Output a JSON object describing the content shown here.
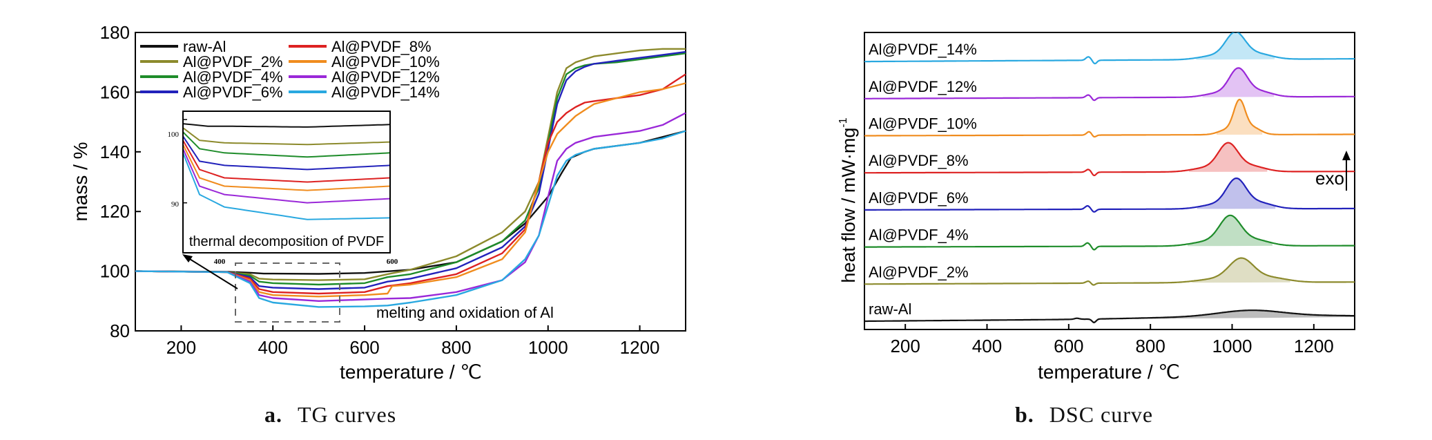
{
  "colors": {
    "raw_al": "#111111",
    "p2": "#8c8a2c",
    "p4": "#1e8c2a",
    "p6": "#2222bb",
    "p8": "#dd2222",
    "p10": "#f08c1e",
    "p12": "#9a28d8",
    "p14": "#29a8e0"
  },
  "captions": {
    "a_letter": "a.",
    "a_text": "TG curves",
    "b_letter": "b.",
    "b_text": "DSC curve"
  },
  "chart_data": [
    {
      "type": "line",
      "xlabel": "temperature / ℃",
      "ylabel": "mass / %",
      "xlim": [
        100,
        1300
      ],
      "ylim": [
        80,
        180
      ],
      "xticks": [
        200,
        400,
        600,
        800,
        1000,
        1200
      ],
      "yticks": [
        80,
        100,
        120,
        140,
        160,
        180
      ],
      "legend_position": "top-left",
      "annotations": {
        "inset_label": "thermal decomposition of PVDF",
        "main_label": "melting and oxidation of Al",
        "inset_x_ticks": [
          "400",
          "600"
        ],
        "inset_y_ticks": [
          "100",
          "90"
        ]
      },
      "inset": {
        "xlim": [
          350,
          600
        ],
        "ylim": [
          84,
          101
        ],
        "ticks_y": [
          100,
          90
        ]
      },
      "series": [
        {
          "name": "raw-Al",
          "color_key": "raw_al",
          "x": [
            100,
            300,
            350,
            380,
            400,
            500,
            600,
            700,
            800,
            900,
            950,
            1000,
            1030,
            1050,
            1080,
            1100,
            1200,
            1300
          ],
          "y": [
            100,
            99.8,
            99.5,
            99.2,
            99.2,
            99.1,
            99.4,
            100.5,
            103,
            110,
            116,
            125,
            133,
            138,
            140,
            141,
            143,
            147
          ]
        },
        {
          "name": "Al@PVDF_2%",
          "color_key": "p2",
          "x": [
            100,
            300,
            350,
            370,
            400,
            500,
            600,
            650,
            700,
            800,
            900,
            950,
            980,
            1000,
            1020,
            1040,
            1060,
            1080,
            1100,
            1150,
            1200,
            1250,
            1300
          ],
          "y": [
            100,
            99.7,
            99,
            97.5,
            97.2,
            97,
            97.3,
            99,
            100.5,
            105,
            113,
            120,
            130,
            145,
            160,
            168,
            170,
            171,
            172,
            173,
            174,
            174.5,
            174.5
          ]
        },
        {
          "name": "Al@PVDF_4%",
          "color_key": "p4",
          "x": [
            100,
            300,
            350,
            370,
            400,
            500,
            600,
            650,
            700,
            800,
            900,
            950,
            980,
            1000,
            1020,
            1040,
            1060,
            1080,
            1100,
            1150,
            1200,
            1250,
            1300
          ],
          "y": [
            100,
            99.7,
            98.5,
            96.5,
            96,
            95.5,
            96,
            98,
            99,
            103,
            110,
            117,
            128,
            143,
            158,
            166,
            168,
            169,
            169.5,
            170,
            171,
            172,
            173
          ]
        },
        {
          "name": "Al@PVDF_6%",
          "color_key": "p6",
          "x": [
            100,
            300,
            350,
            370,
            400,
            500,
            600,
            650,
            700,
            800,
            900,
            950,
            980,
            1000,
            1020,
            1040,
            1060,
            1080,
            1100,
            1150,
            1200,
            1250,
            1300
          ],
          "y": [
            100,
            99.7,
            98,
            95,
            94.5,
            94,
            94.5,
            96.5,
            97.5,
            101,
            108,
            115,
            126,
            141,
            156,
            164,
            167,
            168.5,
            169.5,
            170.5,
            171.5,
            172.5,
            173.5
          ]
        },
        {
          "name": "Al@PVDF_8%",
          "color_key": "p8",
          "x": [
            100,
            300,
            350,
            370,
            400,
            500,
            600,
            650,
            700,
            800,
            900,
            950,
            980,
            1000,
            1020,
            1040,
            1060,
            1080,
            1100,
            1150,
            1200,
            1250,
            1300
          ],
          "y": [
            100,
            99.7,
            97.5,
            94,
            93,
            92.5,
            93,
            95,
            96,
            99,
            106,
            114,
            130,
            143,
            150,
            153,
            155,
            156.5,
            157,
            158,
            159,
            161,
            166
          ]
        },
        {
          "name": "Al@PVDF_10%",
          "color_key": "p10",
          "x": [
            100,
            300,
            350,
            370,
            400,
            500,
            600,
            650,
            660,
            700,
            800,
            900,
            950,
            980,
            1000,
            1020,
            1040,
            1060,
            1080,
            1100,
            1150,
            1200,
            1250,
            1300
          ],
          "y": [
            100,
            99.7,
            97,
            93,
            92,
            91.5,
            92,
            92.5,
            95,
            95.5,
            98,
            104,
            113,
            130,
            140,
            146,
            149,
            152,
            154,
            156,
            158,
            160,
            161,
            163
          ]
        },
        {
          "name": "Al@PVDF_12%",
          "color_key": "p12",
          "x": [
            100,
            300,
            350,
            370,
            400,
            500,
            600,
            650,
            700,
            800,
            900,
            950,
            980,
            1000,
            1020,
            1040,
            1060,
            1080,
            1100,
            1150,
            1200,
            1250,
            1300
          ],
          "y": [
            100,
            99.7,
            96.5,
            92,
            91,
            90,
            90.5,
            90.8,
            91,
            93,
            97,
            103,
            112,
            125,
            137,
            141,
            143,
            144,
            145,
            146,
            147,
            149,
            153
          ]
        },
        {
          "name": "Al@PVDF_14%",
          "color_key": "p14",
          "x": [
            100,
            300,
            350,
            370,
            400,
            500,
            600,
            650,
            700,
            800,
            900,
            950,
            980,
            1000,
            1020,
            1040,
            1060,
            1080,
            1100,
            1150,
            1200,
            1250,
            1300
          ],
          "y": [
            100,
            99.7,
            96,
            91,
            89.5,
            88,
            88.2,
            88.5,
            89.5,
            92,
            97,
            104,
            112,
            122,
            132,
            137,
            139,
            140,
            141,
            142,
            143,
            144.5,
            147
          ]
        }
      ]
    },
    {
      "type": "line",
      "xlabel": "temperature / ℃",
      "ylabel": "heat flow / mW·mg",
      "ylabel_superscript": "-1",
      "xlim": [
        100,
        1300
      ],
      "xticks": [
        200,
        400,
        600,
        800,
        1000,
        1200
      ],
      "yticks_shown": false,
      "annotations": {
        "exo_label": "exo"
      },
      "series": [
        {
          "name": "raw-Al",
          "color_key": "raw_al",
          "baseline": 0,
          "slope": 6,
          "peak_x": 1045,
          "peak_h": 10,
          "peak_w": 80,
          "dip_x": 662,
          "dip_h": -5,
          "wiggle_x": 620,
          "wiggle_h": 1.5
        },
        {
          "name": "Al@PVDF_2%",
          "color_key": "p2",
          "baseline": 1,
          "slope": 3,
          "peak_x": 1022,
          "peak_h": 32,
          "peak_w": 30,
          "dip_x": 660,
          "dip_h": -3,
          "wiggle_x": 648,
          "wiggle_h": 3
        },
        {
          "name": "Al@PVDF_4%",
          "color_key": "p4",
          "baseline": 2,
          "slope": 2,
          "peak_x": 995,
          "peak_h": 40,
          "peak_w": 26,
          "dip_x": 662,
          "dip_h": -5,
          "wiggle_x": 646,
          "wiggle_h": 5
        },
        {
          "name": "Al@PVDF_6%",
          "color_key": "p6",
          "baseline": 3,
          "slope": 2,
          "peak_x": 1010,
          "peak_h": 40,
          "peak_w": 24,
          "dip_x": 662,
          "dip_h": -4,
          "wiggle_x": 646,
          "wiggle_h": 5
        },
        {
          "name": "Al@PVDF_8%",
          "color_key": "p8",
          "baseline": 4,
          "slope": 2,
          "peak_x": 990,
          "peak_h": 38,
          "peak_w": 24,
          "dip_x": 662,
          "dip_h": -5,
          "wiggle_x": 648,
          "wiggle_h": 4
        },
        {
          "name": "Al@PVDF_10%",
          "color_key": "p10",
          "baseline": 5,
          "slope": 2,
          "peak_x": 1018,
          "peak_h": 46,
          "peak_w": 14,
          "dip_x": 662,
          "dip_h": -3,
          "wiggle_x": 650,
          "wiggle_h": 5
        },
        {
          "name": "Al@PVDF_12%",
          "color_key": "p12",
          "baseline": 6,
          "slope": 3,
          "peak_x": 1015,
          "peak_h": 38,
          "peak_w": 22,
          "dip_x": 662,
          "dip_h": -4,
          "wiggle_x": 648,
          "wiggle_h": 4
        },
        {
          "name": "Al@PVDF_14%",
          "color_key": "p14",
          "baseline": 7,
          "slope": 4,
          "peak_x": 1008,
          "peak_h": 36,
          "peak_w": 24,
          "dip_x": 664,
          "dip_h": -5,
          "wiggle_x": 648,
          "wiggle_h": 5
        }
      ]
    }
  ]
}
